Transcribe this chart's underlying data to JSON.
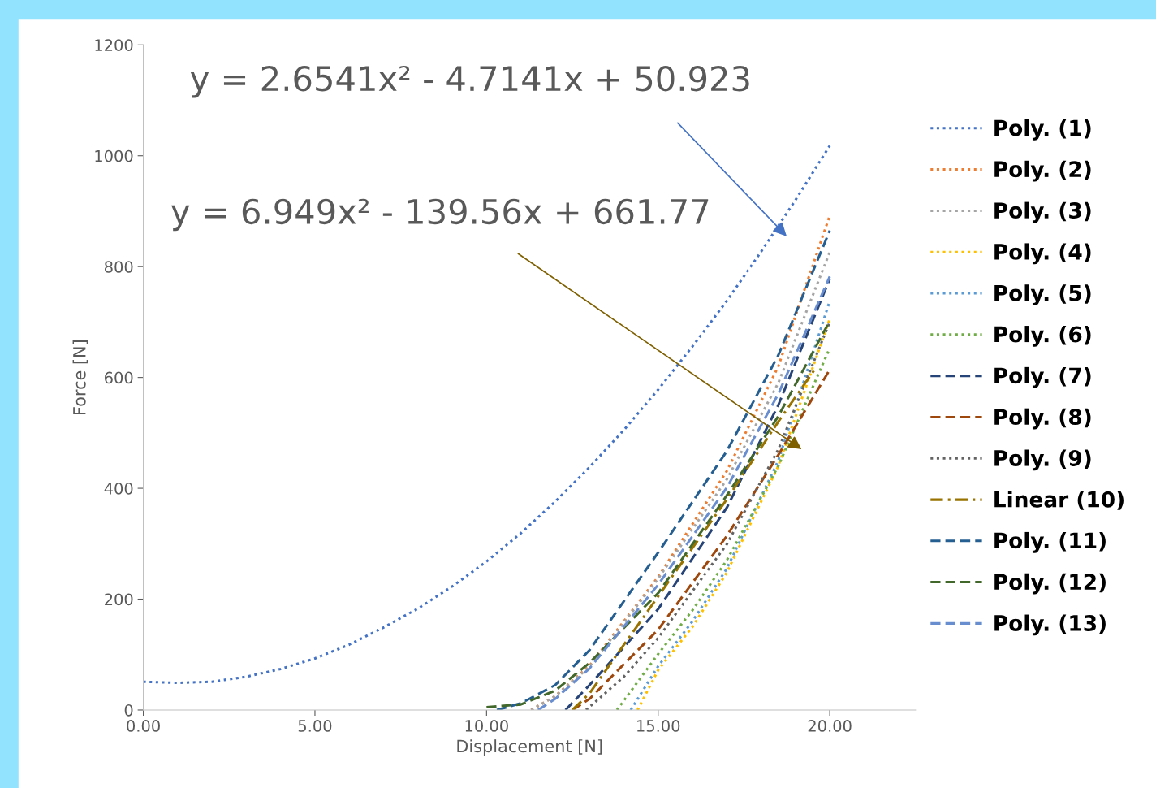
{
  "chart_data": {
    "type": "line",
    "xlabel": "Displacement [N]",
    "ylabel": "Force [N]",
    "xlim": [
      0,
      22.5
    ],
    "ylim": [
      0,
      1200
    ],
    "xticks": [
      {
        "value": 0,
        "label": "0.00"
      },
      {
        "value": 5,
        "label": "5.00"
      },
      {
        "value": 10,
        "label": "10.00"
      },
      {
        "value": 15,
        "label": "15.00"
      },
      {
        "value": 20,
        "label": "20.00"
      }
    ],
    "yticks": [
      0,
      200,
      400,
      600,
      800,
      1000,
      1200
    ],
    "grid": false,
    "legend": "right",
    "marker": "none",
    "annotations": [
      "y = 2.6541x² - 4.7141x + 50.923",
      "y = 6.949x² - 139.56x + 661.77"
    ],
    "series": [
      {
        "name": "Poly. (1)",
        "color": "#4472c4",
        "line_style": "dotted",
        "x": [
          0,
          1,
          2,
          3,
          4,
          5,
          6,
          7,
          8,
          9,
          10,
          11,
          12,
          13,
          14,
          15,
          16,
          17,
          18,
          19,
          20
        ],
        "values": [
          51,
          49,
          51,
          60,
          74,
          93,
          118,
          149,
          183,
          223,
          268,
          319,
          376,
          438,
          505,
          578,
          656,
          738,
          827,
          920,
          1018
        ]
      },
      {
        "name": "Poly. (2)",
        "color": "#ed7d31",
        "line_style": "dotted",
        "x": [
          11.3,
          12,
          13,
          15,
          17,
          18.5,
          20
        ],
        "values": [
          0,
          25,
          80,
          240,
          431,
          620,
          892
        ]
      },
      {
        "name": "Poly. (3)",
        "color": "#a5a5a5",
        "line_style": "dotted",
        "x": [
          11.3,
          12,
          13,
          15,
          17,
          18.5,
          20
        ],
        "values": [
          0,
          25,
          78,
          237,
          416,
          590,
          826
        ]
      },
      {
        "name": "Poly. (4)",
        "color": "#ffc000",
        "line_style": "dotted",
        "x": [
          14.4,
          15,
          16,
          17,
          18.5,
          20
        ],
        "values": [
          0,
          72,
          150,
          248,
          440,
          706
        ]
      },
      {
        "name": "Poly. (5)",
        "color": "#5b9bd5",
        "line_style": "dotted",
        "x": [
          14.2,
          15,
          16,
          17,
          18.5,
          20
        ],
        "values": [
          0,
          79,
          160,
          255,
          450,
          738
        ]
      },
      {
        "name": "Poly. (6)",
        "color": "#70ad47",
        "line_style": "dotted",
        "x": [
          13.8,
          15,
          16,
          17,
          18.5,
          20
        ],
        "values": [
          0,
          101,
          180,
          270,
          440,
          653
        ]
      },
      {
        "name": "Poly. (7)",
        "color": "#264478",
        "line_style": "dashed",
        "x": [
          12.3,
          13,
          15,
          17,
          18.5,
          20
        ],
        "values": [
          0,
          45,
          182,
          365,
          550,
          778
        ]
      },
      {
        "name": "Poly. (8)",
        "color": "#9e480e",
        "line_style": "dashed",
        "x": [
          12.5,
          13,
          15,
          17,
          18.5,
          20
        ],
        "values": [
          0,
          20,
          145,
          314,
          460,
          614
        ]
      },
      {
        "name": "Poly. (9)",
        "color": "#636363",
        "line_style": "dotted",
        "x": [
          12.9,
          14,
          15,
          17,
          18.5,
          20
        ],
        "values": [
          0,
          60,
          130,
          299,
          470,
          700
        ]
      },
      {
        "name": "Linear (10)",
        "color": "#997300",
        "line_style": "dashdot",
        "x": [
          12.5,
          13,
          15,
          17,
          18.5,
          19.6
        ],
        "values": [
          0,
          30,
          205,
          380,
          520,
          618
        ]
      },
      {
        "name": "Poly. (11)",
        "color": "#255e91",
        "line_style": "dashed",
        "x": [
          10.3,
          11,
          12,
          13,
          15,
          17,
          18.5,
          20
        ],
        "values": [
          0,
          12,
          45,
          108,
          284,
          467,
          640,
          865
        ]
      },
      {
        "name": "Poly. (12)",
        "color": "#43682b",
        "line_style": "dashed",
        "x": [
          10,
          11,
          12,
          13,
          15,
          17,
          18.5,
          20
        ],
        "values": [
          5,
          10,
          35,
          85,
          211,
          387,
          530,
          702
        ]
      },
      {
        "name": "Poly. (13)",
        "color": "#698ed0",
        "line_style": "dashed",
        "x": [
          11.5,
          12,
          13,
          15,
          17,
          18.5,
          20
        ],
        "values": [
          0,
          20,
          75,
          226,
          401,
          570,
          782
        ]
      }
    ]
  }
}
